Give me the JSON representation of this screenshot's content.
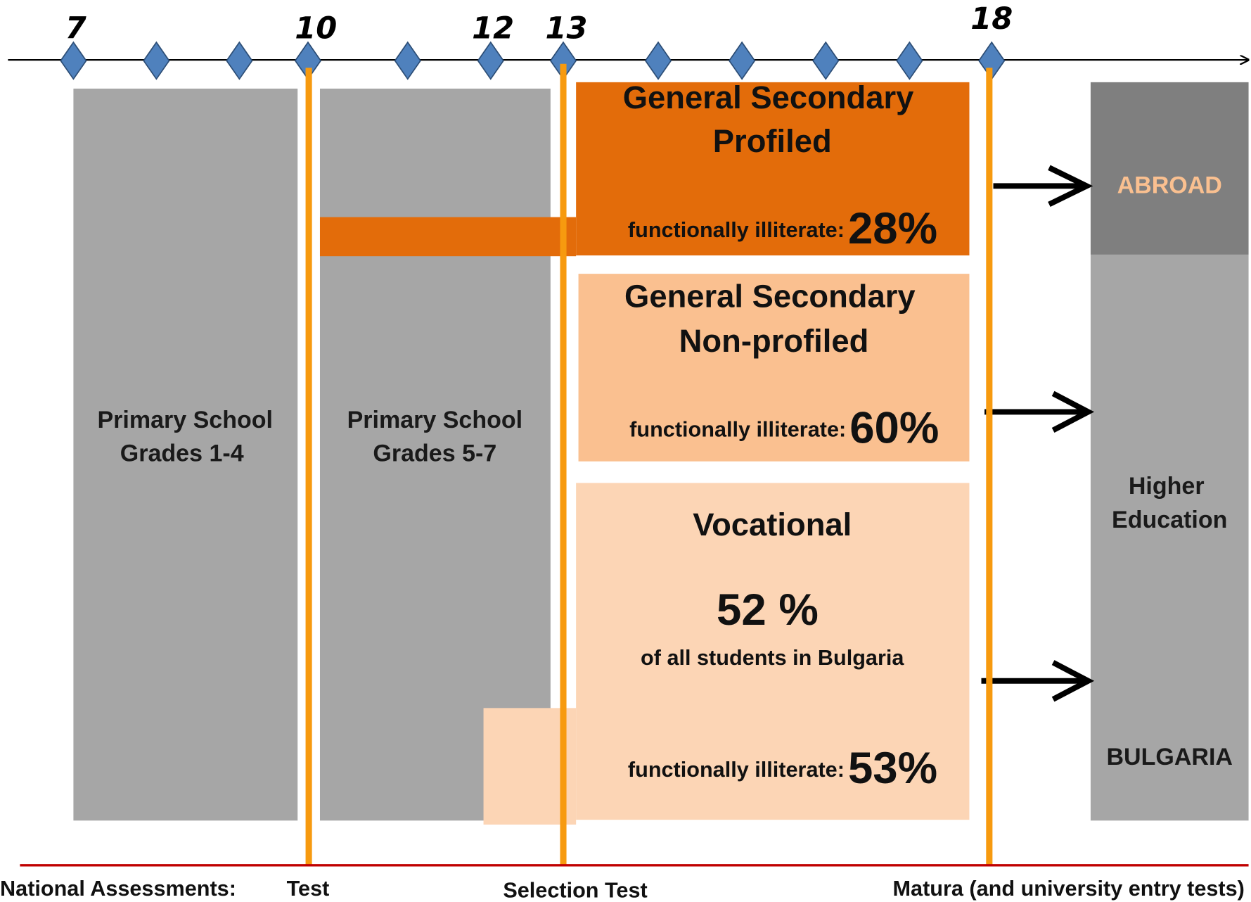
{
  "timeline": {
    "ages": [
      "7",
      "10",
      "12",
      "13",
      "18"
    ]
  },
  "primary_1": {
    "lines": [
      "Primary School",
      "Grades 1-4"
    ]
  },
  "primary_2": {
    "lines": [
      "Primary School",
      "Grades 5-7"
    ]
  },
  "profiled": {
    "lines": [
      "General Secondary",
      "Profiled"
    ],
    "note": "functionally illiterate:",
    "value": "28%"
  },
  "non_profiled": {
    "lines": [
      "General Secondary",
      "Non-profiled"
    ],
    "note": "functionally illiterate:",
    "value": "60%"
  },
  "vocational": {
    "title": "Vocational",
    "share": "52 %",
    "share_note": "of all students in Bulgaria",
    "note": "functionally illiterate:",
    "value": "53%"
  },
  "after": {
    "abroad": "ABROAD",
    "higher": [
      "Higher",
      "Education"
    ],
    "bulgaria": "BULGARIA"
  },
  "assessments": {
    "label": "National Assessments:",
    "items": [
      "Test",
      "Selection Test",
      "Matura (and university entry tests)"
    ]
  }
}
